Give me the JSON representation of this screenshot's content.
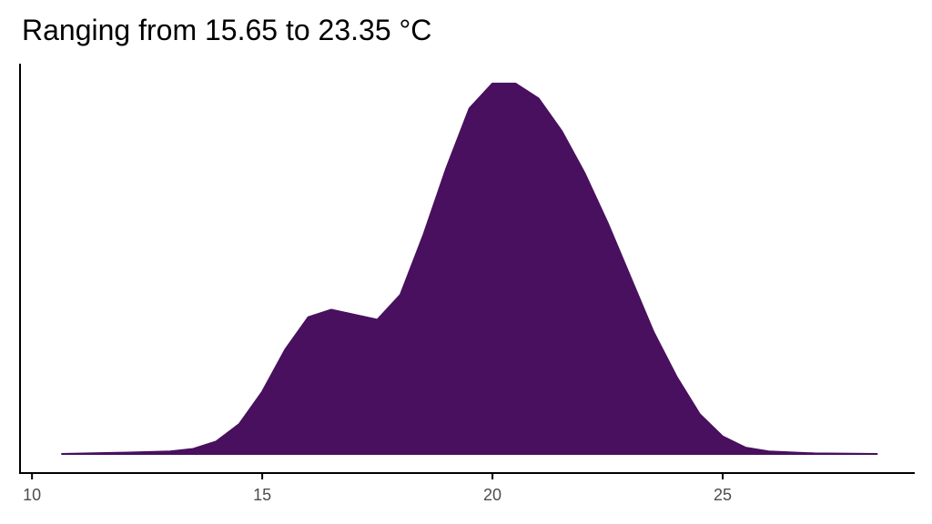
{
  "chart_data": {
    "type": "density",
    "title": "Ranging from 15.65 to 23.35 °C",
    "x": [
      10.65,
      12,
      13,
      13.5,
      14,
      14.5,
      15,
      15.5,
      16,
      16.5,
      17,
      17.5,
      18,
      18.5,
      19,
      19.5,
      20,
      20.5,
      21,
      21.5,
      22,
      22.5,
      23,
      23.5,
      24,
      24.5,
      25,
      25.5,
      26,
      27,
      28.35
    ],
    "values": [
      0,
      0.0005,
      0.001,
      0.002,
      0.005,
      0.012,
      0.025,
      0.042,
      0.055,
      0.058,
      0.056,
      0.054,
      0.064,
      0.088,
      0.115,
      0.139,
      0.149,
      0.149,
      0.143,
      0.13,
      0.113,
      0.093,
      0.071,
      0.049,
      0.031,
      0.016,
      0.007,
      0.0025,
      0.001,
      0.0002,
      0
    ],
    "color": "#48105e",
    "xlim": [
      9.74,
      29.17
    ],
    "xticks": [
      10,
      15,
      20,
      25
    ],
    "ylim": [
      -0.0077,
      0.157
    ]
  }
}
